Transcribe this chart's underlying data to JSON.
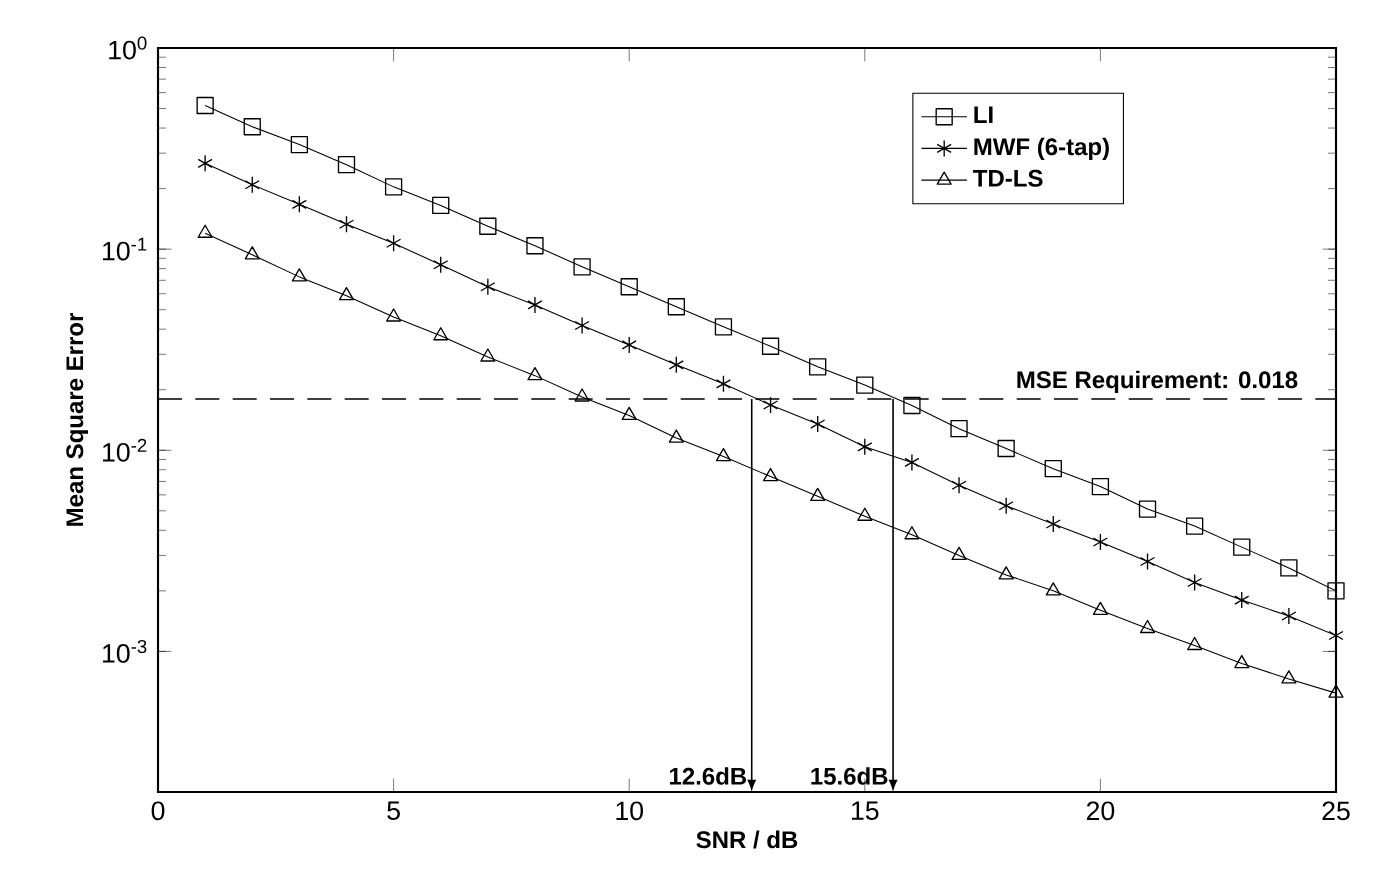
{
  "chart_data": {
    "type": "line",
    "xlabel": "SNR / dB",
    "ylabel": "Mean Square Error",
    "x": [
      1,
      2,
      3,
      4,
      5,
      6,
      7,
      8,
      9,
      10,
      11,
      12,
      13,
      14,
      15,
      16,
      17,
      18,
      19,
      20,
      21,
      22,
      23,
      24,
      25
    ],
    "series": [
      {
        "name": "LI",
        "color": "#000000",
        "marker": "square",
        "values": [
          0.518,
          0.406,
          0.331,
          0.263,
          0.204,
          0.165,
          0.13,
          0.104,
          0.0817,
          0.065,
          0.0517,
          0.0411,
          0.0329,
          0.026,
          0.0211,
          0.0167,
          0.0128,
          0.0102,
          0.0081,
          0.0066,
          0.0051,
          0.0042,
          0.0033,
          0.0026,
          0.002
        ]
      },
      {
        "name": "MWF (6-tap)",
        "color": "#000000",
        "marker": "cross",
        "values": [
          0.267,
          0.209,
          0.167,
          0.133,
          0.107,
          0.0836,
          0.065,
          0.0528,
          0.0417,
          0.0334,
          0.0266,
          0.0214,
          0.0168,
          0.0135,
          0.0104,
          0.0087,
          0.0067,
          0.0053,
          0.0043,
          0.0035,
          0.0028,
          0.0022,
          0.0018,
          0.0015,
          0.0012
        ]
      },
      {
        "name": "TD-LS",
        "color": "#000000",
        "marker": "triangle",
        "values": [
          0.12,
          0.0937,
          0.0728,
          0.0587,
          0.046,
          0.0371,
          0.0291,
          0.0235,
          0.0184,
          0.0149,
          0.0115,
          0.0093,
          0.0074,
          0.0059,
          0.0047,
          0.0038,
          0.003,
          0.0024,
          0.002,
          0.0016,
          0.0013,
          0.00107,
          0.00087,
          0.00073,
          0.00062
        ]
      }
    ],
    "log": "y",
    "xlim": [
      0,
      25
    ],
    "xticks": [
      0,
      5,
      10,
      15,
      20,
      25
    ],
    "ylim": [
      0.0002,
      1
    ],
    "yticks": [
      {
        "value": 0.001,
        "label": "10$^{-3}$"
      },
      {
        "value": 0.01,
        "label": "10$^{-2}$"
      },
      {
        "value": 0.1,
        "label": "10$^{-1}$"
      },
      {
        "value": 1,
        "label": "10$^{0}$"
      }
    ],
    "ref_lines": [
      {
        "axis": "y",
        "value": 0.018,
        "label": "MSE Requirement: 0.018",
        "line_style": "dashed",
        "color": "#000000"
      }
    ],
    "annotations": [
      {
        "text": "12.6dB",
        "x": 12.6,
        "y": 0.018
      },
      {
        "text": "15.6dB",
        "x": 15.6,
        "y": 0.018
      }
    ],
    "legend": "top right",
    "grid": false,
    "line_style": "solid"
  }
}
